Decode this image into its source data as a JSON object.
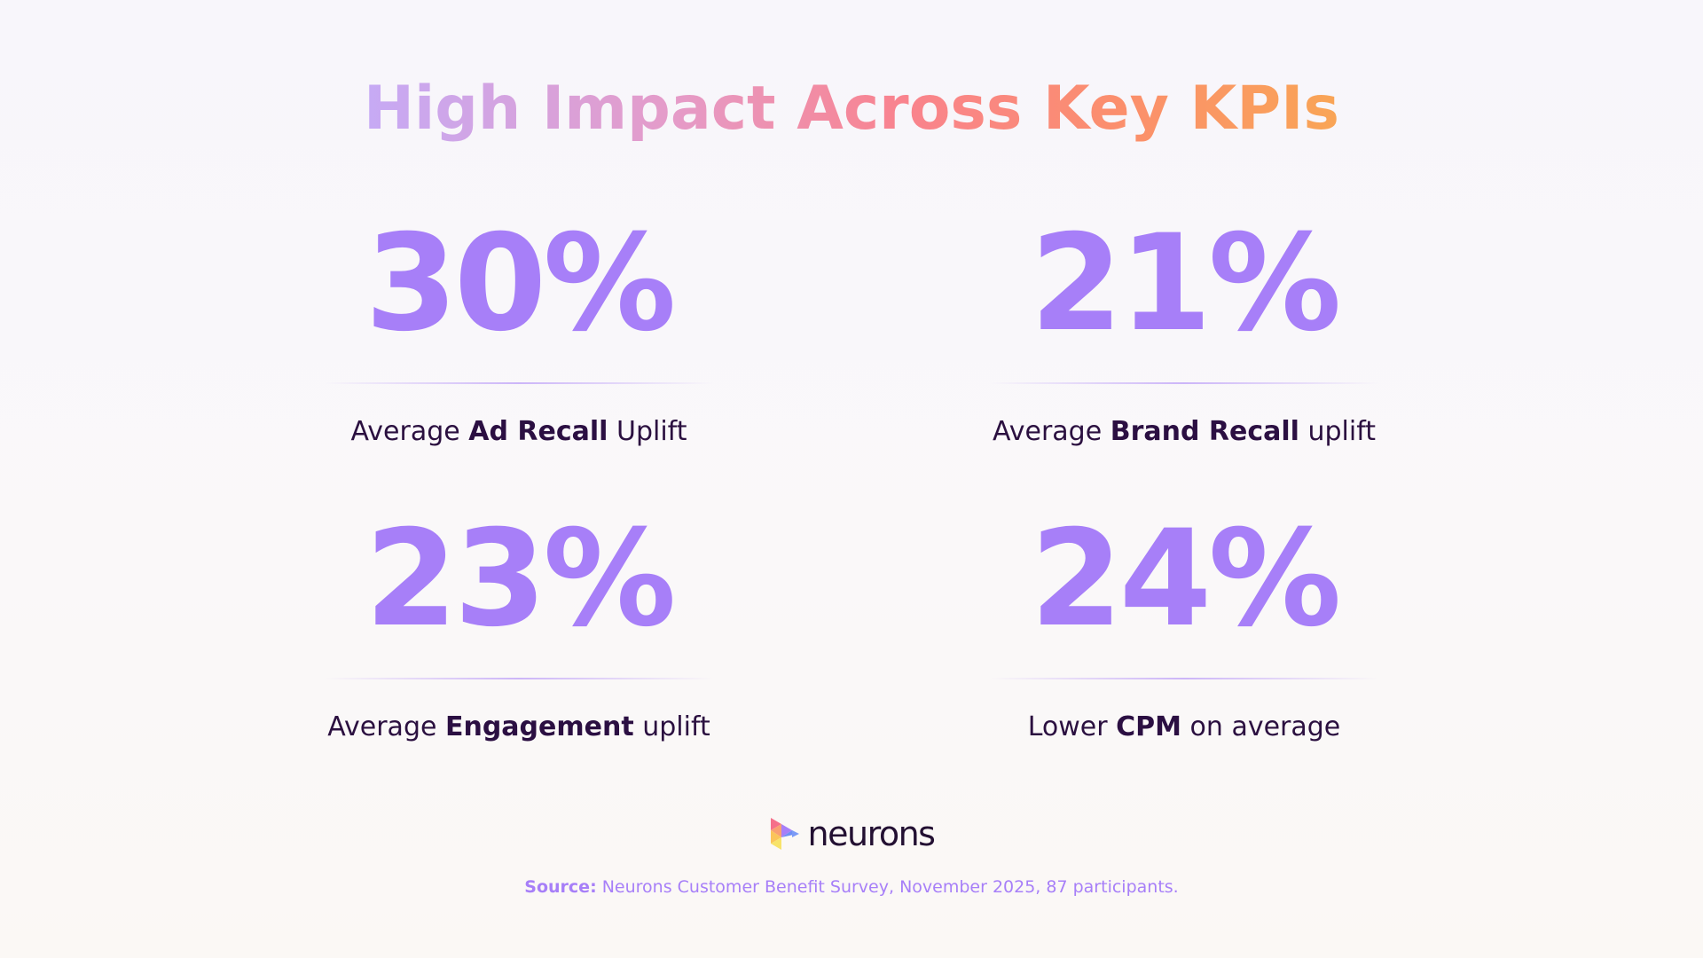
{
  "title": "High Impact Across Key KPIs",
  "stats": [
    {
      "value": "30%",
      "label_pre": "Average ",
      "label_bold": "Ad Recall",
      "label_post": " Uplift"
    },
    {
      "value": "21%",
      "label_pre": "Average ",
      "label_bold": "Brand Recall",
      "label_post": " uplift"
    },
    {
      "value": "23%",
      "label_pre": "Average ",
      "label_bold": "Engagement",
      "label_post": " uplift"
    },
    {
      "value": "24%",
      "label_pre": "Lower ",
      "label_bold": "CPM",
      "label_post": " on average"
    }
  ],
  "brand": {
    "name": "neurons",
    "logo_icon": "neurons-logo-icon"
  },
  "source": {
    "label": "Source:",
    "text": " Neurons Customer Benefit Survey, November 2025, 87 participants."
  },
  "colors": {
    "accent": "#a77ff8",
    "label_text": "#2b1040",
    "background": "#f9f7fa",
    "title_gradient": [
      "#c6aaf5",
      "#e59bc8",
      "#f9838e",
      "#fb8f6c",
      "#f9a556"
    ]
  }
}
